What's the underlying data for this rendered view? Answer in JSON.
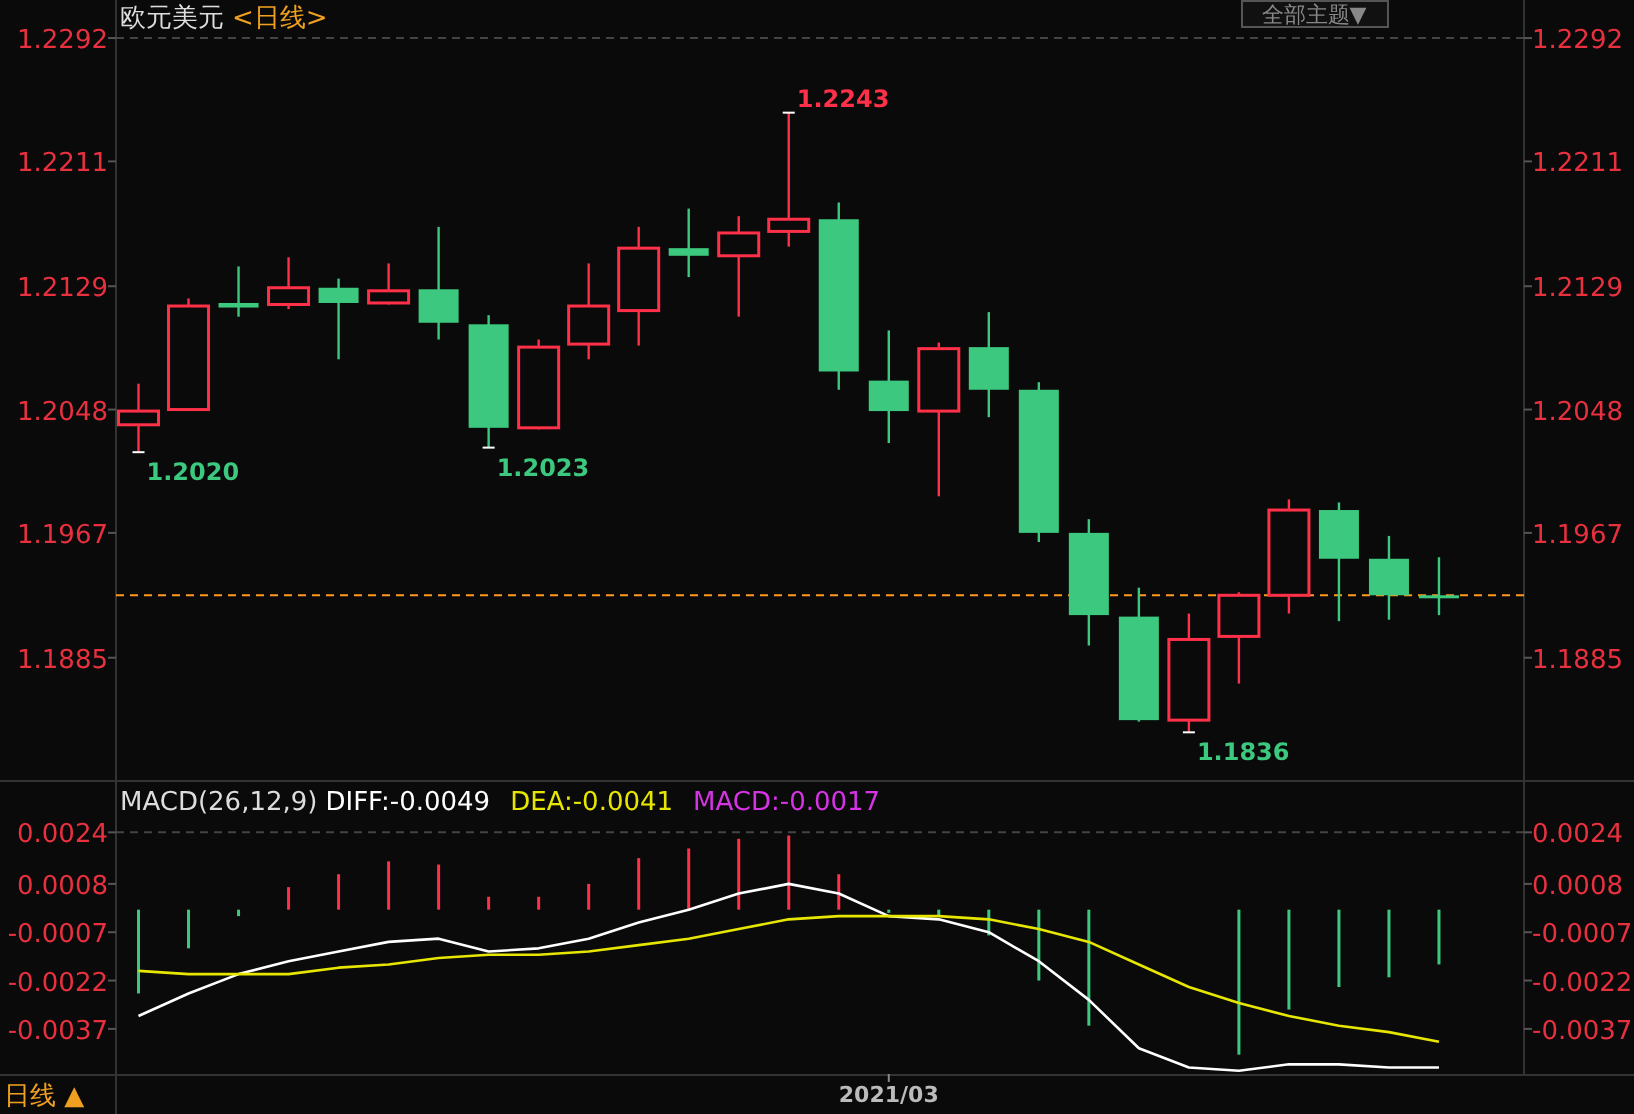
{
  "chart_data": [
    {
      "type": "candlestick",
      "title": "欧元美元",
      "subtitle": "<日线>",
      "tick_labels": "y",
      "categories": [
        null,
        null,
        null,
        null,
        null,
        null,
        null,
        null,
        null,
        null,
        null,
        null,
        null,
        null,
        null,
        null,
        null,
        null,
        null,
        null,
        null,
        null,
        null,
        null,
        null,
        null,
        null
      ],
      "ohlc": [
        [
          1.2038,
          1.2065,
          1.202,
          1.2047
        ],
        [
          1.2048,
          1.2121,
          1.2047,
          1.2116
        ],
        [
          1.2118,
          1.2142,
          1.2109,
          1.2115
        ],
        [
          1.2117,
          1.2148,
          1.2114,
          1.2128
        ],
        [
          1.2128,
          1.2134,
          1.2081,
          1.2118
        ],
        [
          1.2118,
          1.2144,
          1.2117,
          1.2126
        ],
        [
          1.2127,
          1.2168,
          1.2094,
          1.2105
        ],
        [
          1.2104,
          1.211,
          1.2023,
          1.2036
        ],
        [
          1.2036,
          1.2094,
          1.2035,
          1.2089
        ],
        [
          1.2091,
          1.2144,
          1.2081,
          1.2116
        ],
        [
          1.2113,
          1.2168,
          1.209,
          1.2154
        ],
        [
          1.2154,
          1.218,
          1.2135,
          1.2149
        ],
        [
          1.2149,
          1.2175,
          1.2109,
          1.2164
        ],
        [
          1.2165,
          1.2243,
          1.2155,
          1.2173
        ],
        [
          1.2173,
          1.2184,
          1.2061,
          1.2073
        ],
        [
          1.2067,
          1.21,
          1.2026,
          1.2047
        ],
        [
          1.2047,
          1.2092,
          1.1991,
          1.2088
        ],
        [
          1.2089,
          1.2112,
          1.2043,
          1.2061
        ],
        [
          1.2061,
          1.2066,
          1.1961,
          1.1967
        ],
        [
          1.1967,
          1.1976,
          1.1893,
          1.1913
        ],
        [
          1.1912,
          1.1931,
          1.1843,
          1.1844
        ],
        [
          1.1844,
          1.1914,
          1.1836,
          1.1897
        ],
        [
          1.1899,
          1.1928,
          1.1868,
          1.1926
        ],
        [
          1.1926,
          1.1989,
          1.1914,
          1.1982
        ],
        [
          1.1982,
          1.1987,
          1.1909,
          1.195
        ],
        [
          1.195,
          1.1965,
          1.191,
          1.1926
        ],
        [
          1.1926,
          1.1951,
          1.1913,
          1.1925
        ]
      ],
      "colors": [
        "#ff3048",
        "#ff3048",
        "#3cc87e",
        "#ff3048",
        "#3cc87e",
        "#ff3048",
        "#3cc87e",
        "#3cc87e",
        "#ff3048",
        "#ff3048",
        "#ff3048",
        "#3cc87e",
        "#ff3048",
        "#ff3048",
        "#3cc87e",
        "#3cc87e",
        "#ff3048",
        "#3cc87e",
        "#3cc87e",
        "#3cc87e",
        "#3cc87e",
        "#ff3048",
        "#ff3048",
        "#ff3048",
        "#3cc87e",
        "#3cc87e",
        "#3cc87e"
      ],
      "ylim": [
        1.1806,
        1.2317
      ],
      "yticks": [
        1.1885,
        1.1967,
        1.2048,
        1.2129,
        1.2211,
        1.2292
      ],
      "y2lim": [
        1.1806,
        1.2317
      ],
      "y2ticks": [
        1.1885,
        1.1967,
        1.2048,
        1.2129,
        1.2211,
        1.2292
      ],
      "ref_lines": [
        {
          "axis": "y",
          "value": 1.1926,
          "color": "#ff9a1e",
          "line_style": "dashed"
        },
        {
          "axis": "y",
          "value": 1.2292,
          "color": "#444444",
          "line_style": "dashed"
        }
      ],
      "annotations": [
        "1.2020",
        "1.2023",
        "1.2243",
        "1.1836",
        "全部主题▼"
      ]
    },
    {
      "type": "line",
      "title": "MACD(26,12,9)",
      "legend": "top left",
      "categories": [
        null,
        null,
        null,
        null,
        null,
        null,
        null,
        null,
        null,
        null,
        null,
        null,
        null,
        null,
        null,
        "2021/03",
        null,
        null,
        null,
        null,
        null,
        null,
        null,
        null,
        null,
        null,
        null
      ],
      "series": [
        {
          "name": "DIFF:-0.0049",
          "color": "#ffffff",
          "values": [
            -0.0033,
            -0.0026,
            -0.002,
            -0.0016,
            -0.0013,
            -0.001,
            -0.0009,
            -0.0013,
            -0.0012,
            -0.0009,
            -0.0004,
            0.0,
            0.0005,
            0.0008,
            0.0005,
            -0.0002,
            -0.0003,
            -0.0007,
            -0.0016,
            -0.0028,
            -0.0043,
            -0.0049,
            -0.005,
            -0.0048,
            -0.0048,
            -0.0049,
            -0.0049
          ]
        },
        {
          "name": "DEA:-0.0041",
          "color": "#e6e600",
          "values": [
            -0.0019,
            -0.002,
            -0.002,
            -0.002,
            -0.0018,
            -0.0017,
            -0.0015,
            -0.0014,
            -0.0014,
            -0.0013,
            -0.0011,
            -0.0009,
            -0.0006,
            -0.0003,
            -0.0002,
            -0.0002,
            -0.0002,
            -0.0003,
            -0.0006,
            -0.001,
            -0.0017,
            -0.0024,
            -0.0029,
            -0.0033,
            -0.0036,
            -0.0038,
            -0.0041
          ]
        },
        {
          "name": "MACD:-0.0017",
          "type": "bar",
          "color": "#d633e6",
          "values": [
            -0.0026,
            -0.0012,
            -0.0002,
            0.0007,
            0.0011,
            0.0015,
            0.0014,
            0.0004,
            0.0004,
            0.0008,
            0.0016,
            0.0019,
            0.0022,
            0.0023,
            0.0011,
            -0.0001,
            -0.0002,
            -0.0008,
            -0.0022,
            -0.0036,
            null,
            null,
            -0.0045,
            -0.0031,
            -0.0024,
            -0.0021,
            -0.0017
          ],
          "colors": [
            "#3cc87e",
            "#3cc87e",
            "#3cc87e",
            "#ff3048",
            "#ff3048",
            "#ff3048",
            "#ff3048",
            "#ff3048",
            "#ff3048",
            "#ff3048",
            "#ff3048",
            "#ff3048",
            "#ff3048",
            "#ff3048",
            "#ff3048",
            "#3cc87e",
            "#3cc87e",
            "#3cc87e",
            "#3cc87e",
            "#3cc87e",
            null,
            null,
            "#3cc87e",
            "#3cc87e",
            "#3cc87e",
            "#3cc87e",
            "#3cc87e"
          ]
        }
      ],
      "ylim": [
        -0.0051,
        0.0039
      ],
      "yticks": [
        -0.0037,
        -0.0022,
        -0.0007,
        0.0008,
        0.0024
      ],
      "y2lim": [
        -0.0051,
        0.0039
      ],
      "y2ticks": [
        -0.0037,
        -0.0022,
        -0.0007,
        0.0008,
        0.0024
      ],
      "ref_lines": [
        {
          "axis": "y",
          "value": 0.0024,
          "color": "#444444",
          "line_style": "dashed"
        }
      ],
      "annotations": [
        "日线 ▲"
      ]
    }
  ]
}
